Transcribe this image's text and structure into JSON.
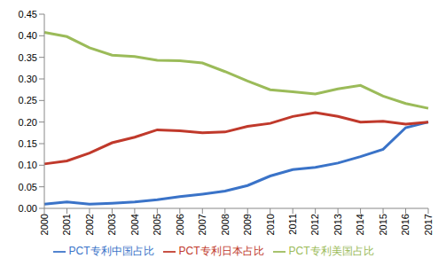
{
  "chart_data": {
    "type": "line",
    "categories": [
      "2000",
      "2001",
      "2002",
      "2003",
      "2004",
      "2005",
      "2006",
      "2007",
      "2008",
      "2009",
      "2010",
      "2011",
      "2012",
      "2013",
      "2014",
      "2015",
      "2016",
      "2017"
    ],
    "series": [
      {
        "name": "PCT专利中国占比",
        "color": "#3a73c8",
        "values": [
          0.01,
          0.015,
          0.01,
          0.012,
          0.015,
          0.02,
          0.027,
          0.033,
          0.04,
          0.053,
          0.075,
          0.09,
          0.095,
          0.105,
          0.12,
          0.137,
          0.187,
          0.2
        ]
      },
      {
        "name": "PCT专利日本占比",
        "color": "#c0392b",
        "values": [
          0.103,
          0.11,
          0.128,
          0.152,
          0.165,
          0.182,
          0.18,
          0.175,
          0.177,
          0.19,
          0.197,
          0.213,
          0.222,
          0.213,
          0.2,
          0.202,
          0.195,
          0.2
        ]
      },
      {
        "name": "PCT专利美国占比",
        "color": "#9bbb59",
        "values": [
          0.408,
          0.398,
          0.372,
          0.355,
          0.352,
          0.343,
          0.342,
          0.337,
          0.317,
          0.295,
          0.275,
          0.27,
          0.265,
          0.277,
          0.285,
          0.26,
          0.243,
          0.232
        ]
      }
    ],
    "ylim": [
      0,
      0.45
    ],
    "yticks": [
      {
        "value": 0,
        "label": "0.00"
      },
      {
        "value": 0.05,
        "label": "0.05"
      },
      {
        "value": 0.1,
        "label": "0.10"
      },
      {
        "value": 0.15,
        "label": "0.15"
      },
      {
        "value": 0.2,
        "label": "0.20"
      },
      {
        "value": 0.25,
        "label": "0.25"
      },
      {
        "value": 0.3,
        "label": "0.30"
      },
      {
        "value": 0.35,
        "label": "0.35"
      },
      {
        "value": 0.4,
        "label": "0.40"
      },
      {
        "value": 0.45,
        "label": "0.45"
      }
    ],
    "grid": false,
    "legend": "bottom",
    "marker": "none"
  }
}
